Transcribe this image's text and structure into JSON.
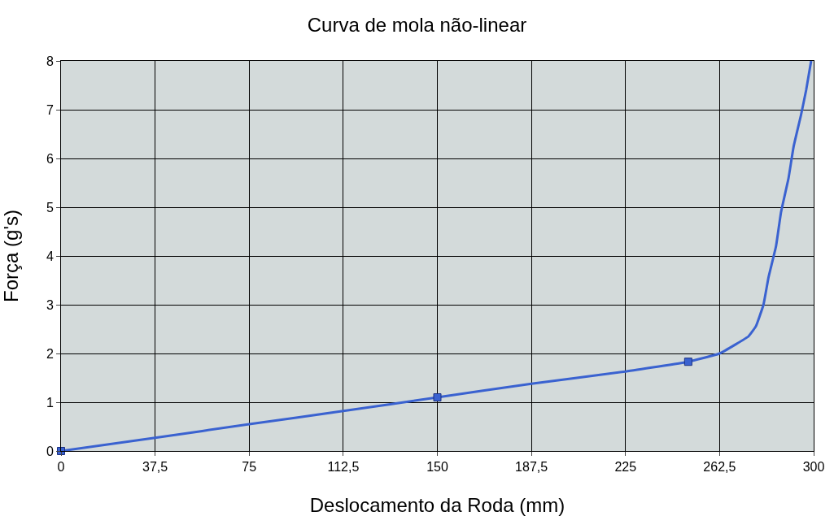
{
  "chart_data": {
    "type": "line",
    "title": "Curva de mola não-linear",
    "xlabel": "Deslocamento da Roda (mm)",
    "ylabel": "Força (g's)",
    "series": [
      {
        "color": "#3a62d0",
        "marker": "none",
        "x": [
          0,
          37.5,
          75,
          112.5,
          150,
          187.5,
          225,
          250,
          262.5,
          269,
          274,
          277,
          280,
          282,
          285,
          287,
          290,
          292,
          295,
          297,
          299
        ],
        "values": [
          0,
          0.27,
          0.55,
          0.82,
          1.1,
          1.38,
          1.63,
          1.83,
          2.0,
          2.19,
          2.35,
          2.56,
          3.0,
          3.56,
          4.2,
          4.9,
          5.6,
          6.24,
          6.9,
          7.4,
          8
        ]
      },
      {
        "type": "scatter",
        "color": "#3a62d0",
        "marker": "square",
        "x": [
          0,
          150,
          250
        ],
        "values": [
          0,
          1.1,
          1.83
        ]
      }
    ],
    "xlim": [
      0,
      300
    ],
    "xticks": [
      0,
      {
        "value": 37.5,
        "label": "37,5"
      },
      75,
      {
        "value": 112.5,
        "label": "112,5"
      },
      150,
      {
        "value": 187.5,
        "label": "187,5"
      },
      225,
      {
        "value": 262.5,
        "label": "262,5"
      },
      300
    ],
    "ylim": [
      0,
      8
    ],
    "yticks": [
      0,
      1,
      2,
      3,
      4,
      5,
      6,
      7,
      8
    ],
    "grid": true
  }
}
